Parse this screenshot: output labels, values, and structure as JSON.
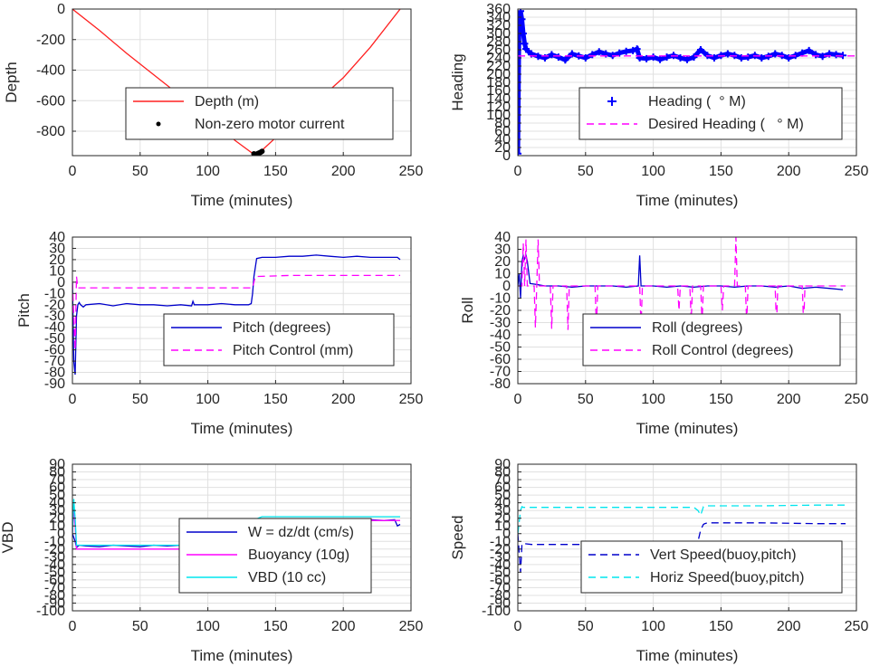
{
  "chart_data": [
    {
      "type": "line",
      "xlabel": "Time (minutes)",
      "ylabel": "Depth",
      "xlim": [
        0,
        250
      ],
      "ylim": [
        -960,
        0
      ],
      "xticks": [
        0,
        50,
        100,
        150,
        200,
        250
      ],
      "yticks": [
        0,
        -200,
        -400,
        -600,
        -800
      ],
      "grid": true,
      "legend_position": "center",
      "series": [
        {
          "name": "Depth (m)",
          "style": "solid",
          "color": "#ff2020",
          "x": [
            0,
            20,
            40,
            60,
            80,
            100,
            120,
            133,
            136,
            140,
            160,
            180,
            200,
            220,
            242
          ],
          "y": [
            0,
            -140,
            -290,
            -430,
            -570,
            -710,
            -860,
            -945,
            -950,
            -925,
            -760,
            -610,
            -450,
            -250,
            0
          ]
        },
        {
          "name": "Non-zero motor current",
          "style": "dots",
          "color": "#000000",
          "x": [
            134,
            135,
            136,
            137,
            138,
            139,
            140
          ],
          "y": [
            -948,
            -952,
            -950,
            -946,
            -942,
            -938,
            -932
          ]
        }
      ]
    },
    {
      "type": "line",
      "xlabel": "Time (minutes)",
      "ylabel": "Heading",
      "xlim": [
        0,
        250
      ],
      "ylim": [
        0,
        360
      ],
      "xticks": [
        0,
        50,
        100,
        150,
        200,
        250
      ],
      "yticks": [
        0,
        20,
        40,
        60,
        80,
        100,
        120,
        140,
        160,
        180,
        200,
        220,
        240,
        260,
        280,
        300,
        320,
        340,
        360
      ],
      "grid": true,
      "legend_position": "center-bottom",
      "series": [
        {
          "name": "Heading (  ° M)",
          "style": "plus",
          "color": "#0000ff",
          "x": [
            0,
            1,
            2,
            3,
            4,
            5,
            6,
            8,
            10,
            15,
            20,
            25,
            30,
            35,
            40,
            45,
            50,
            55,
            60,
            65,
            70,
            75,
            80,
            85,
            88,
            90,
            95,
            100,
            105,
            110,
            115,
            120,
            125,
            130,
            135,
            140,
            145,
            150,
            155,
            160,
            165,
            170,
            175,
            180,
            185,
            190,
            195,
            200,
            205,
            210,
            215,
            220,
            225,
            230,
            235,
            240
          ],
          "y": [
            5,
            345,
            355,
            335,
            300,
            275,
            262,
            255,
            250,
            244,
            240,
            248,
            242,
            235,
            250,
            245,
            240,
            248,
            255,
            250,
            246,
            252,
            256,
            258,
            262,
            240,
            238,
            242,
            236,
            242,
            246,
            240,
            236,
            242,
            260,
            246,
            240,
            246,
            250,
            246,
            240,
            242,
            246,
            240,
            244,
            250,
            246,
            240,
            246,
            252,
            258,
            248,
            244,
            250,
            248,
            246
          ]
        },
        {
          "name": "Desired Heading (   ° M)",
          "style": "dashed",
          "color": "#ff00ff",
          "x": [
            0,
            5,
            10,
            250
          ],
          "y": [
            245,
            245,
            245,
            245
          ]
        }
      ]
    },
    {
      "type": "line",
      "xlabel": "Time (minutes)",
      "ylabel": "Pitch",
      "xlim": [
        0,
        250
      ],
      "ylim": [
        -90,
        40
      ],
      "xticks": [
        0,
        50,
        100,
        150,
        200,
        250
      ],
      "yticks": [
        40,
        30,
        20,
        10,
        0,
        -10,
        -20,
        -30,
        -40,
        -50,
        -60,
        -70,
        -80,
        -90
      ],
      "grid": true,
      "legend_position": "bottom-center",
      "series": [
        {
          "name": "Pitch (degrees)",
          "style": "solid",
          "color": "#0000cc",
          "x": [
            0,
            1,
            2,
            3,
            4,
            5,
            6,
            8,
            10,
            20,
            30,
            40,
            50,
            60,
            70,
            80,
            88,
            89,
            90,
            100,
            110,
            120,
            130,
            132,
            133,
            134,
            136,
            140,
            150,
            160,
            170,
            180,
            190,
            200,
            210,
            220,
            230,
            240,
            242
          ],
          "y": [
            0,
            -70,
            -82,
            -30,
            -20,
            -18,
            -20,
            -22,
            -20,
            -19,
            -21,
            -19,
            -20,
            -20,
            -21,
            -20,
            -21,
            -17,
            -20,
            -20,
            -19,
            -20,
            -20,
            -19,
            -10,
            5,
            21,
            22,
            22,
            23,
            23,
            24,
            23,
            22,
            23,
            22,
            22,
            22,
            20
          ]
        },
        {
          "name": "Pitch Control (mm)",
          "style": "dashed",
          "color": "#ff00ff",
          "x": [
            0,
            2,
            3,
            4,
            6,
            133,
            135,
            160,
            200,
            242
          ],
          "y": [
            0,
            -60,
            5,
            -5,
            -5,
            -5,
            5,
            6,
            6,
            6
          ]
        }
      ]
    },
    {
      "type": "line",
      "xlabel": "Time (minutes)",
      "ylabel": "Roll",
      "xlim": [
        0,
        250
      ],
      "ylim": [
        -80,
        40
      ],
      "xticks": [
        0,
        50,
        100,
        150,
        200,
        250
      ],
      "yticks": [
        40,
        30,
        20,
        10,
        0,
        -10,
        -20,
        -30,
        -40,
        -50,
        -60,
        -70,
        -80
      ],
      "grid": true,
      "legend_position": "bottom-center",
      "series": [
        {
          "name": "Roll (degrees)",
          "style": "solid",
          "color": "#0000cc",
          "x": [
            0,
            1,
            2,
            3,
            4,
            5,
            6,
            7,
            9,
            15,
            20,
            30,
            40,
            50,
            60,
            70,
            80,
            89,
            90,
            91,
            100,
            110,
            120,
            130,
            140,
            150,
            160,
            170,
            180,
            190,
            200,
            210,
            220,
            230,
            240
          ],
          "y": [
            0,
            10,
            -10,
            20,
            25,
            22,
            25,
            20,
            2,
            1,
            0,
            0,
            -1,
            0,
            0,
            0,
            -1,
            0,
            25,
            0,
            0,
            -1,
            0,
            -1,
            0,
            0,
            -1,
            0,
            0,
            -1,
            0,
            -2,
            -1,
            -2,
            -3
          ]
        },
        {
          "name": "Roll Control (degrees)",
          "style": "dashed",
          "color": "#ff00ff",
          "x": [
            0,
            3,
            4,
            5,
            6,
            7,
            8,
            9,
            10,
            12,
            13,
            14,
            15,
            16,
            16.5,
            17,
            18,
            24,
            25,
            26,
            27,
            36,
            37,
            38,
            39,
            57,
            58,
            59,
            60,
            90,
            91,
            92,
            93,
            118,
            119,
            120,
            121,
            127,
            128,
            129,
            130,
            135,
            136,
            137,
            138,
            150,
            151,
            152,
            153,
            160,
            161,
            162,
            163,
            168,
            169,
            170,
            171,
            190,
            191,
            192,
            193,
            210,
            211,
            212,
            213,
            242
          ],
          "y": [
            0,
            0,
            35,
            0,
            38,
            0,
            0,
            0,
            0,
            0,
            -34,
            0,
            38,
            0,
            0,
            0,
            0,
            0,
            -35,
            0,
            0,
            0,
            -36,
            0,
            0,
            0,
            -35,
            0,
            0,
            0,
            -33,
            0,
            0,
            0,
            -20,
            0,
            0,
            0,
            -28,
            0,
            0,
            0,
            -30,
            0,
            0,
            0,
            -20,
            0,
            0,
            0,
            40,
            0,
            0,
            0,
            -30,
            0,
            0,
            0,
            -32,
            0,
            0,
            0,
            -32,
            0,
            0,
            0
          ]
        }
      ]
    },
    {
      "type": "line",
      "xlabel": "Time (minutes)",
      "ylabel": "VBD",
      "xlim": [
        0,
        250
      ],
      "ylim": [
        -100,
        90
      ],
      "xticks": [
        0,
        50,
        100,
        150,
        200,
        250
      ],
      "yticks": [
        90,
        80,
        70,
        60,
        50,
        40,
        30,
        20,
        10,
        0,
        -10,
        -20,
        -30,
        -40,
        -50,
        -60,
        -70,
        -80,
        -90,
        -100
      ],
      "ytick_labels": [
        "90",
        "80",
        "70",
        "60",
        "50",
        "40",
        "30",
        "20",
        "10",
        "0",
        "-10",
        "-20",
        "-30",
        "-40",
        "-50",
        "-60",
        "-70",
        "-80",
        "-90",
        "-100"
      ],
      "grid": true,
      "legend_position": "bottom-center",
      "series": [
        {
          "name": "W = dz/dt (cm/s)",
          "style": "solid",
          "color": "#0000cc",
          "x": [
            0,
            1,
            2,
            3,
            5,
            10,
            20,
            30,
            40,
            50,
            60,
            70,
            80,
            90,
            100,
            110,
            120,
            130,
            133,
            136,
            140,
            150,
            160,
            170,
            180,
            190,
            200,
            210,
            220,
            230,
            238,
            240,
            242
          ],
          "y": [
            0,
            -5,
            -10,
            -18,
            -15,
            -16,
            -17,
            -15,
            -16,
            -17,
            -15,
            -16,
            -15,
            -14,
            -16,
            -15,
            -15,
            -15,
            -14,
            10,
            17,
            16,
            17,
            17,
            16,
            17,
            16,
            17,
            18,
            17,
            18,
            10,
            12
          ]
        },
        {
          "name": "Buoyancy (10g)",
          "style": "solid",
          "color": "#ff00ff",
          "x": [
            0,
            1,
            2,
            3,
            5,
            133,
            136,
            140,
            242
          ],
          "y": [
            0,
            30,
            10,
            -20,
            -20,
            -20,
            10,
            17,
            17
          ]
        },
        {
          "name": "VBD (10 cc)",
          "style": "solid",
          "color": "#00e5ee",
          "x": [
            0,
            1,
            2,
            3,
            5,
            133,
            137,
            140,
            242
          ],
          "y": [
            0,
            45,
            20,
            -15,
            -15,
            -15,
            20,
            22,
            22
          ]
        }
      ]
    },
    {
      "type": "line",
      "xlabel": "Time (minutes)",
      "ylabel": "Speed",
      "xlim": [
        0,
        250
      ],
      "ylim": [
        -100,
        90
      ],
      "xticks": [
        0,
        50,
        100,
        150,
        200,
        250
      ],
      "yticks": [
        90,
        80,
        70,
        60,
        50,
        40,
        30,
        20,
        10,
        0,
        -10,
        -20,
        -30,
        -40,
        -50,
        -60,
        -70,
        -80,
        -90,
        -100
      ],
      "ytick_labels": [
        "90",
        "80",
        "70",
        "60",
        "50",
        "40",
        "30",
        "20",
        "10",
        "0",
        "-10",
        "-20",
        "-30",
        "-40",
        "-50",
        "-60",
        "-70",
        "-80",
        "-90",
        "-100"
      ],
      "grid": true,
      "legend_position": "bottom-center",
      "series": [
        {
          "name": "Vert Speed(buoy,pitch)",
          "style": "dashed",
          "color": "#0000cc",
          "x": [
            0,
            2,
            3,
            4,
            5,
            10,
            40,
            80,
            120,
            130,
            133,
            135,
            137,
            138,
            140,
            180,
            220,
            242
          ],
          "y": [
            0,
            -50,
            -15,
            -12,
            -13,
            -14,
            -14,
            -14,
            -14,
            -14,
            -10,
            5,
            12,
            13,
            14,
            14,
            13,
            13
          ]
        },
        {
          "name": "Horiz Speed(buoy,pitch)",
          "style": "dashed",
          "color": "#00e5ee",
          "x": [
            0,
            2,
            3,
            4,
            10,
            50,
            100,
            130,
            133,
            135,
            137,
            140,
            180,
            220,
            242
          ],
          "y": [
            0,
            30,
            35,
            34,
            34,
            34,
            34,
            34,
            30,
            24,
            35,
            36,
            36,
            37,
            37
          ]
        }
      ]
    }
  ]
}
